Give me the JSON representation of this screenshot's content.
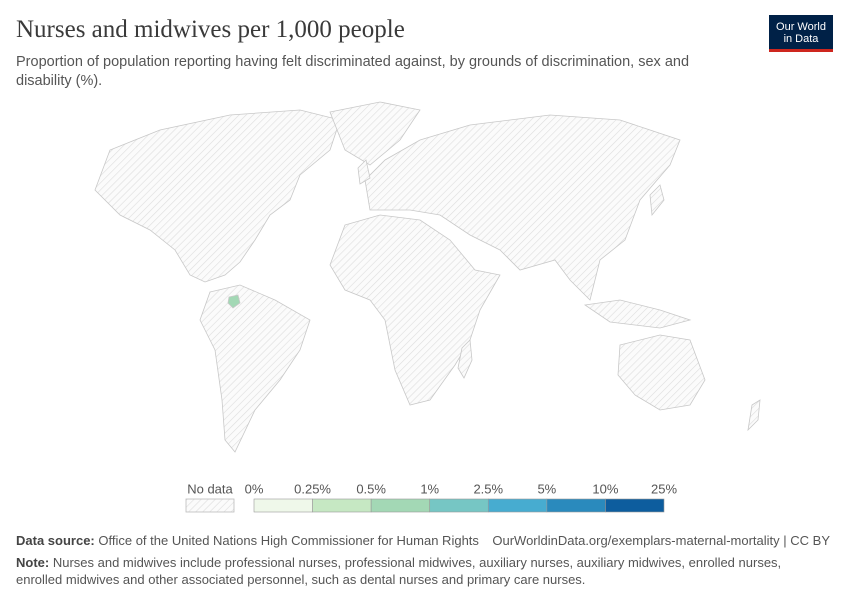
{
  "header": {
    "title": "Nurses and midwives per 1,000 people",
    "subtitle": "Proportion of population reporting having felt discriminated against, by grounds of discrimination, sex and disability (%)."
  },
  "logo": {
    "line1": "Our World",
    "line2": "in Data"
  },
  "legend": {
    "no_data": "No data",
    "bins": [
      "0%",
      "0.25%",
      "0.5%",
      "1%",
      "2.5%",
      "5%",
      "10%",
      "25%"
    ],
    "colors": [
      "#eff8ea",
      "#c6e8c3",
      "#a3d8b5",
      "#76c6c4",
      "#47acd0",
      "#2a8abd",
      "#0d5d9e"
    ],
    "highlighted_bin": 2
  },
  "footer": {
    "source_label": "Data source:",
    "source": "Office of the United Nations High Commissioner for Human Rights",
    "url": "OurWorldinData.org/exemplars-maternal-mortality | CC BY",
    "note_label": "Note:",
    "note": "Nurses and midwives include professional nurses, professional midwives, auxiliary nurses, auxiliary midwives, enrolled nurses, enrolled midwives and other associated personnel, such as dental nurses and primary care nurses."
  }
}
